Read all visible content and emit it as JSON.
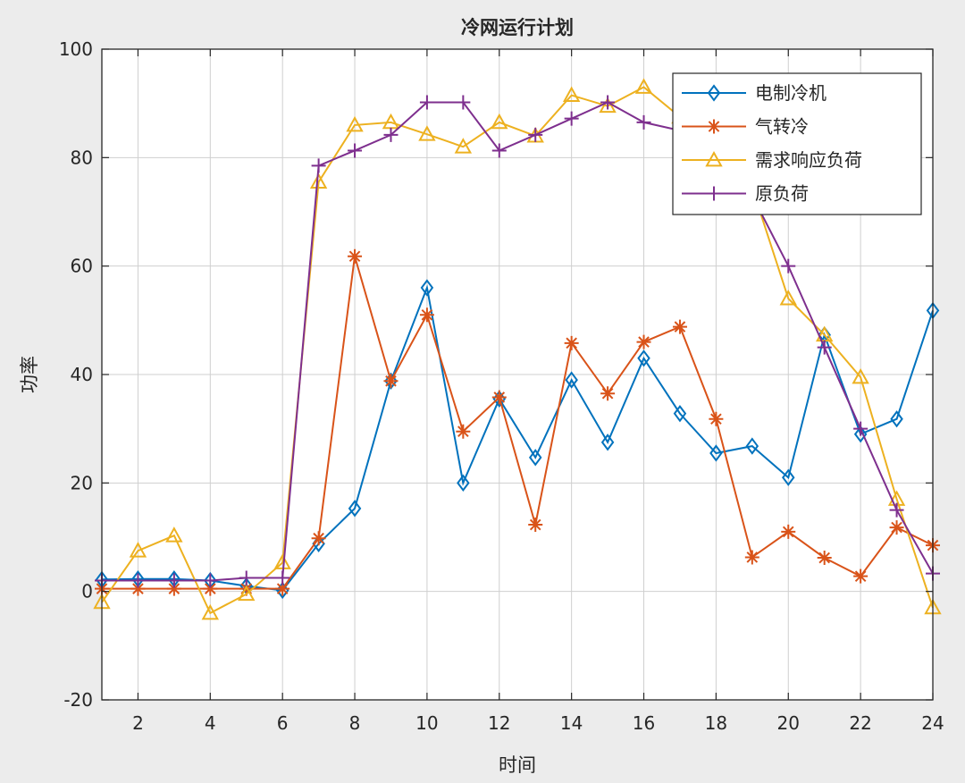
{
  "chart_data": {
    "type": "line",
    "title": "冷网运行计划",
    "xlabel": "时间",
    "ylabel": "功率",
    "xlim": [
      1,
      24
    ],
    "ylim": [
      -20,
      100
    ],
    "xticks": [
      2,
      4,
      6,
      8,
      10,
      12,
      14,
      16,
      18,
      20,
      22,
      24
    ],
    "yticks": [
      -20,
      0,
      20,
      40,
      60,
      80,
      100
    ],
    "grid": true,
    "legend_position": "top-right",
    "x": [
      1,
      2,
      3,
      4,
      5,
      6,
      7,
      8,
      9,
      10,
      11,
      12,
      13,
      14,
      15,
      16,
      17,
      18,
      19,
      20,
      21,
      22,
      23,
      24
    ],
    "series": [
      {
        "name": "电制冷机",
        "color": "#0072BD",
        "marker": "diamond",
        "values": [
          2.2,
          2.3,
          2.3,
          2.0,
          1.0,
          0.2,
          8.8,
          15.3,
          38.8,
          56.0,
          20.0,
          35.5,
          24.7,
          39.0,
          27.5,
          43.0,
          32.8,
          25.5,
          26.8,
          21.0,
          47.3,
          29.0,
          31.8,
          51.8
        ]
      },
      {
        "name": "气转冷",
        "color": "#D95319",
        "marker": "asterisk",
        "values": [
          0.5,
          0.5,
          0.5,
          0.5,
          0.5,
          0.5,
          9.8,
          61.8,
          38.8,
          51.0,
          29.5,
          35.8,
          12.3,
          45.8,
          36.5,
          46.0,
          48.8,
          31.8,
          6.3,
          11.0,
          6.2,
          2.8,
          11.8,
          8.5
        ]
      },
      {
        "name": "需求响应负荷",
        "color": "#EDB120",
        "marker": "triangle",
        "values": [
          -2.0,
          7.5,
          10.3,
          -4.0,
          -0.5,
          5.3,
          75.5,
          86.0,
          86.5,
          84.3,
          82.0,
          86.5,
          84.0,
          91.5,
          89.5,
          93.0,
          87.5,
          87.0,
          74.5,
          54.0,
          47.3,
          39.5,
          17.0,
          -3.0
        ]
      },
      {
        "name": "原负荷",
        "color": "#7E2F8E",
        "marker": "plus",
        "values": [
          2.0,
          2.0,
          2.0,
          2.0,
          2.5,
          2.5,
          78.5,
          81.3,
          84.2,
          90.2,
          90.2,
          81.3,
          84.2,
          87.2,
          90.2,
          86.5,
          85.0,
          84.5,
          73.0,
          60.0,
          45.0,
          30.0,
          15.0,
          3.3
        ]
      }
    ]
  }
}
